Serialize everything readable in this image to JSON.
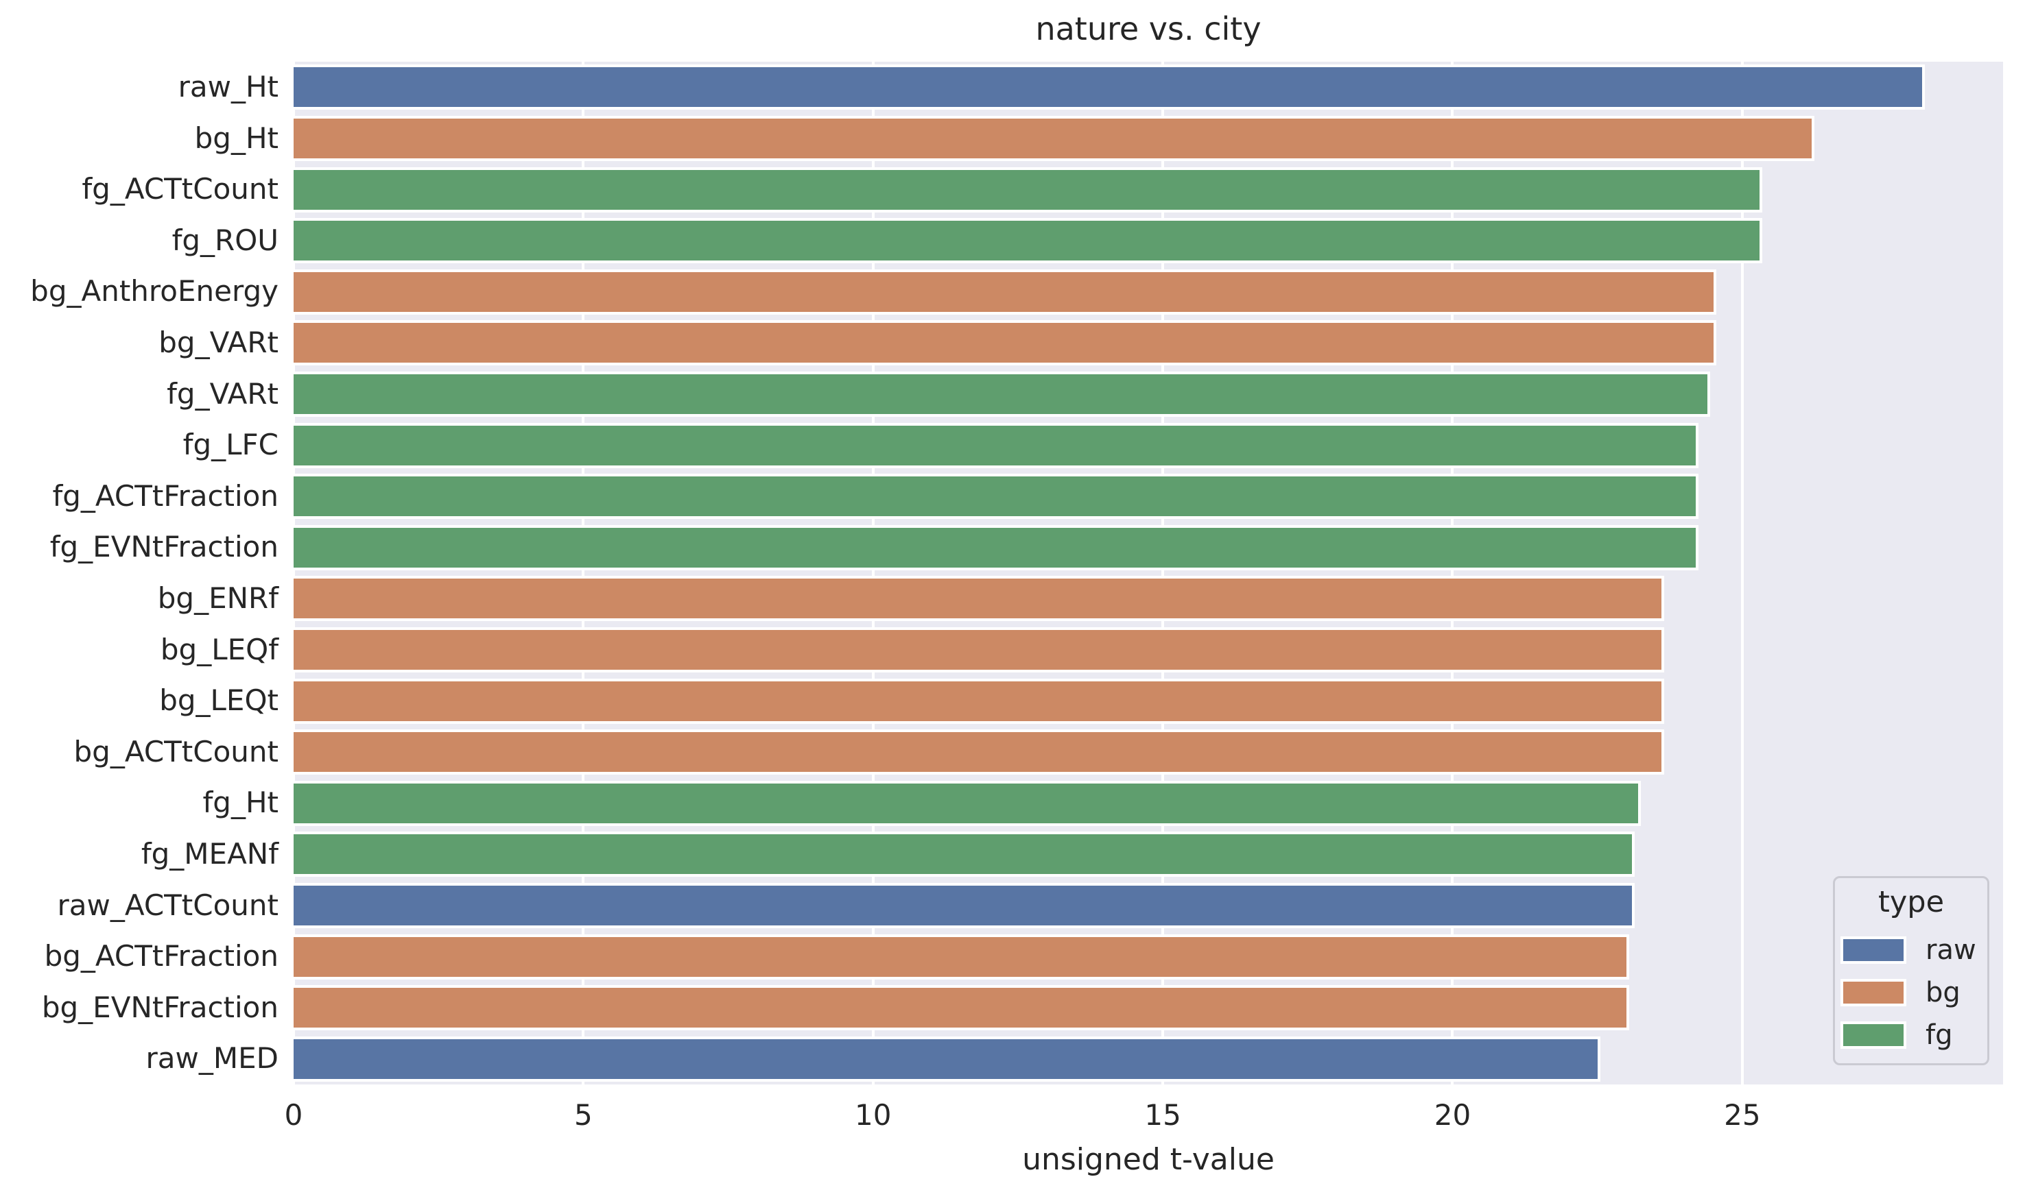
{
  "chart_data": {
    "type": "bar",
    "orientation": "horizontal",
    "title": "nature vs. city",
    "xlabel": "unsigned t-value",
    "ylabel": "",
    "xlim": [
      0,
      29.5
    ],
    "xticks": [
      0,
      5,
      10,
      15,
      20,
      25
    ],
    "grid": true,
    "plot_bg_color": "#eaeaf2",
    "gridline_color": "#ffffff",
    "legend": {
      "title": "type",
      "position": "lower right",
      "entries": [
        {
          "label": "raw"
        },
        {
          "label": "bg"
        },
        {
          "label": "fg"
        }
      ]
    },
    "type_colors": {
      "raw": "#5875a4",
      "bg": "#cc8964",
      "fg": "#5f9e6e"
    },
    "bars": [
      {
        "label": "raw_Ht",
        "type": "raw",
        "value": 28.1
      },
      {
        "label": "bg_Ht",
        "type": "bg",
        "value": 26.2
      },
      {
        "label": "fg_ACTtCount",
        "type": "fg",
        "value": 25.3
      },
      {
        "label": "fg_ROU",
        "type": "fg",
        "value": 25.3
      },
      {
        "label": "bg_AnthroEnergy",
        "type": "bg",
        "value": 24.5
      },
      {
        "label": "bg_VARt",
        "type": "bg",
        "value": 24.5
      },
      {
        "label": "fg_VARt",
        "type": "fg",
        "value": 24.4
      },
      {
        "label": "fg_LFC",
        "type": "fg",
        "value": 24.2
      },
      {
        "label": "fg_ACTtFraction",
        "type": "fg",
        "value": 24.2
      },
      {
        "label": "fg_EVNtFraction",
        "type": "fg",
        "value": 24.2
      },
      {
        "label": "bg_ENRf",
        "type": "bg",
        "value": 23.6
      },
      {
        "label": "bg_LEQf",
        "type": "bg",
        "value": 23.6
      },
      {
        "label": "bg_LEQt",
        "type": "bg",
        "value": 23.6
      },
      {
        "label": "bg_ACTtCount",
        "type": "bg",
        "value": 23.6
      },
      {
        "label": "fg_Ht",
        "type": "fg",
        "value": 23.2
      },
      {
        "label": "fg_MEANf",
        "type": "fg",
        "value": 23.1
      },
      {
        "label": "raw_ACTtCount",
        "type": "raw",
        "value": 23.1
      },
      {
        "label": "bg_ACTtFraction",
        "type": "bg",
        "value": 23.0
      },
      {
        "label": "bg_EVNtFraction",
        "type": "bg",
        "value": 23.0
      },
      {
        "label": "raw_MED",
        "type": "raw",
        "value": 22.5
      }
    ]
  }
}
